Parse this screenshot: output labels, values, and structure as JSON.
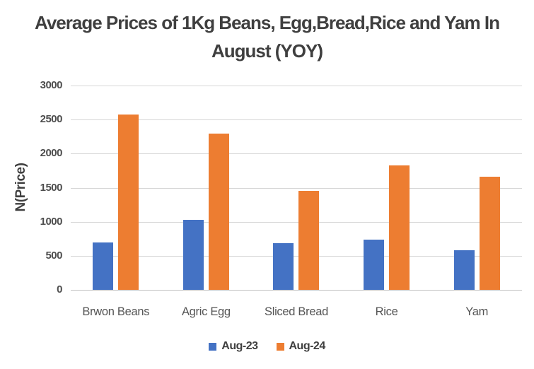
{
  "title": "Average Prices of 1Kg Beans, Egg,Bread,Rice and Yam In August (YOY)",
  "chart_data": {
    "type": "bar",
    "title": "Average Prices of 1Kg Beans, Egg,Bread,Rice and Yam In August (YOY)",
    "xlabel": "",
    "ylabel": "N(Price)",
    "categories": [
      "Brwon Beans",
      "Agric Egg",
      "Sliced Bread",
      "Rice",
      "Yam"
    ],
    "series": [
      {
        "name": "Aug-23",
        "color": "#4472C4",
        "values": [
          700,
          1030,
          690,
          740,
          580
        ]
      },
      {
        "name": "Aug-24",
        "color": "#ED7D31",
        "values": [
          2570,
          2290,
          1450,
          1830,
          1660
        ]
      }
    ],
    "ylim": [
      0,
      3000
    ],
    "y_ticks": [
      0,
      500,
      1000,
      1500,
      2000,
      2500,
      3000
    ],
    "grid": true,
    "legend_position": "bottom",
    "colors": {
      "title_text": "#3f3f3f",
      "axis_text": "#4d4d4d",
      "gridline": "#d6d6d6",
      "axis_line": "#bfbfbf",
      "background": "#ffffff"
    }
  }
}
